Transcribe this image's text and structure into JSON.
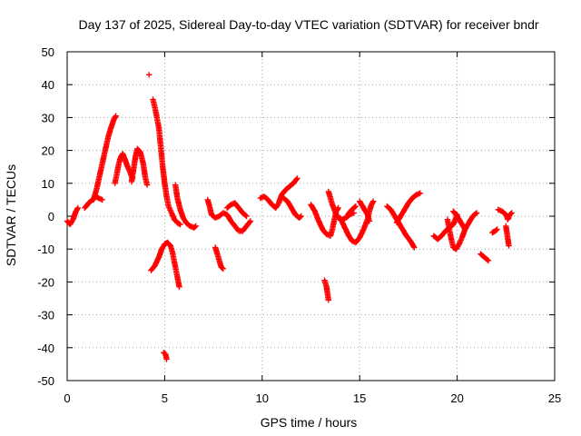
{
  "chart_data": {
    "type": "scatter",
    "title": "Day 137 of 2025, Sidereal Day-to-day VTEC variation (SDTVAR) for receiver bndr",
    "xlabel": "GPS time / hours",
    "ylabel": "SDTVAR / TECUs",
    "xlim": [
      0,
      25
    ],
    "ylim": [
      -50,
      50
    ],
    "xticks": [
      "0",
      "5",
      "10",
      "15",
      "20",
      "25"
    ],
    "yticks": [
      "50",
      "40",
      "30",
      "20",
      "10",
      "0",
      "-10",
      "-20",
      "-30",
      "-40",
      "-50"
    ],
    "grid": true,
    "marker": "+",
    "color": "#ff0000",
    "series": [
      {
        "name": "SDTVAR",
        "segments": [
          [
            [
              0.0,
              -1.5
            ],
            [
              0.15,
              -2.5
            ],
            [
              0.3,
              -1.0
            ],
            [
              0.45,
              1.5
            ],
            [
              0.55,
              2.5
            ]
          ],
          [
            [
              0.9,
              2.5
            ],
            [
              1.1,
              4.0
            ],
            [
              1.3,
              5.0
            ],
            [
              1.5,
              6.0
            ],
            [
              1.6,
              5.5
            ],
            [
              1.8,
              5.0
            ]
          ],
          [
            [
              1.35,
              5.0
            ],
            [
              1.5,
              8.0
            ],
            [
              1.65,
              12.0
            ],
            [
              1.8,
              16.0
            ],
            [
              1.95,
              20.0
            ],
            [
              2.1,
              24.0
            ],
            [
              2.25,
              27.0
            ],
            [
              2.4,
              29.5
            ],
            [
              2.5,
              30.5
            ]
          ],
          [
            [
              2.45,
              10.0
            ],
            [
              2.55,
              13.0
            ],
            [
              2.65,
              16.0
            ],
            [
              2.75,
              18.0
            ],
            [
              2.85,
              19.0
            ],
            [
              2.95,
              17.5
            ],
            [
              3.1,
              15.0
            ],
            [
              3.25,
              13.0
            ],
            [
              3.35,
              11.5
            ]
          ],
          [
            [
              3.3,
              10.5
            ],
            [
              3.4,
              14.0
            ],
            [
              3.5,
              18.0
            ],
            [
              3.6,
              20.5
            ],
            [
              3.75,
              19.5
            ],
            [
              3.9,
              16.0
            ],
            [
              4.0,
              12.0
            ],
            [
              4.1,
              9.5
            ]
          ],
          [
            [
              4.2,
              43.0
            ]
          ],
          [
            [
              4.4,
              35.5
            ],
            [
              4.5,
              33.0
            ],
            [
              4.6,
              30.0
            ],
            [
              4.7,
              27.0
            ],
            [
              4.8,
              21.0
            ],
            [
              4.9,
              15.0
            ],
            [
              5.0,
              10.0
            ],
            [
              5.1,
              6.0
            ],
            [
              5.2,
              3.0
            ],
            [
              5.35,
              1.0
            ],
            [
              5.5,
              -1.0
            ],
            [
              5.65,
              -2.0
            ],
            [
              5.8,
              -2.5
            ]
          ],
          [
            [
              5.55,
              9.5
            ],
            [
              5.65,
              5.5
            ],
            [
              5.8,
              2.0
            ],
            [
              5.95,
              -0.5
            ],
            [
              6.1,
              -2.0
            ],
            [
              6.3,
              -3.0
            ],
            [
              6.5,
              -3.5
            ],
            [
              6.6,
              -3.0
            ]
          ],
          [
            [
              4.3,
              -16.5
            ],
            [
              4.5,
              -15.0
            ],
            [
              4.7,
              -12.5
            ],
            [
              4.85,
              -10.0
            ],
            [
              5.0,
              -8.5
            ],
            [
              5.15,
              -8.0
            ],
            [
              5.3,
              -9.0
            ],
            [
              5.4,
              -11.0
            ],
            [
              5.5,
              -14.0
            ],
            [
              5.6,
              -17.0
            ],
            [
              5.7,
              -20.0
            ],
            [
              5.75,
              -21.5
            ]
          ],
          [
            [
              4.95,
              -41.5
            ],
            [
              5.05,
              -42.0
            ],
            [
              5.1,
              -43.5
            ]
          ],
          [
            [
              7.2,
              5.0
            ],
            [
              7.3,
              3.0
            ],
            [
              7.4,
              0.5
            ],
            [
              7.6,
              -0.5
            ],
            [
              7.8,
              0.0
            ],
            [
              8.0,
              1.0
            ],
            [
              8.2,
              0.5
            ],
            [
              8.4,
              -1.5
            ],
            [
              8.6,
              -3.0
            ],
            [
              8.8,
              -4.5
            ],
            [
              9.0,
              -4.5
            ],
            [
              9.2,
              -3.0
            ],
            [
              9.4,
              -1.5
            ]
          ],
          [
            [
              8.2,
              2.5
            ],
            [
              8.4,
              3.5
            ],
            [
              8.6,
              4.0
            ],
            [
              8.8,
              2.5
            ],
            [
              9.0,
              1.0
            ],
            [
              9.2,
              0.0
            ]
          ],
          [
            [
              7.6,
              -9.5
            ],
            [
              7.7,
              -11.5
            ],
            [
              7.8,
              -13.5
            ],
            [
              7.9,
              -15.5
            ],
            [
              8.0,
              -16.0
            ]
          ],
          [
            [
              9.9,
              5.5
            ],
            [
              10.1,
              6.0
            ],
            [
              10.3,
              5.0
            ],
            [
              10.5,
              3.5
            ],
            [
              10.7,
              2.5
            ],
            [
              10.85,
              4.0
            ],
            [
              11.0,
              6.5
            ],
            [
              11.2,
              8.0
            ],
            [
              11.4,
              9.0
            ],
            [
              11.6,
              10.0
            ],
            [
              11.8,
              11.5
            ]
          ],
          [
            [
              11.1,
              5.5
            ],
            [
              11.3,
              4.5
            ],
            [
              11.5,
              2.5
            ],
            [
              11.7,
              0.5
            ],
            [
              11.9,
              -0.5
            ],
            [
              12.0,
              0.0
            ]
          ],
          [
            [
              12.5,
              3.5
            ],
            [
              12.7,
              1.5
            ],
            [
              12.9,
              -1.5
            ],
            [
              13.1,
              -4.0
            ],
            [
              13.3,
              -5.5
            ],
            [
              13.5,
              -6.0
            ],
            [
              13.6,
              -4.0
            ],
            [
              13.7,
              -1.0
            ],
            [
              13.8,
              1.5
            ],
            [
              13.9,
              2.5
            ]
          ],
          [
            [
              13.4,
              7.5
            ],
            [
              13.5,
              5.5
            ],
            [
              13.6,
              3.5
            ],
            [
              13.7,
              2.0
            ],
            [
              13.8,
              0.5
            ],
            [
              13.9,
              -0.5
            ],
            [
              14.1,
              -1.0
            ],
            [
              14.3,
              -0.5
            ],
            [
              14.5,
              0.5
            ],
            [
              14.7,
              1.0
            ]
          ],
          [
            [
              14.0,
              -0.5
            ],
            [
              14.2,
              -3.0
            ],
            [
              14.4,
              -5.5
            ],
            [
              14.6,
              -7.5
            ],
            [
              14.8,
              -8.0
            ],
            [
              15.0,
              -6.5
            ],
            [
              15.2,
              -4.0
            ],
            [
              15.4,
              -1.0
            ],
            [
              15.5,
              1.5
            ],
            [
              15.6,
              3.5
            ],
            [
              15.7,
              4.5
            ]
          ],
          [
            [
              14.4,
              0.5
            ],
            [
              14.6,
              2.0
            ],
            [
              14.8,
              3.0
            ]
          ],
          [
            [
              15.0,
              4.5
            ],
            [
              15.2,
              2.5
            ],
            [
              15.4,
              0.5
            ],
            [
              15.5,
              -1.5
            ]
          ],
          [
            [
              13.2,
              -19.5
            ],
            [
              13.3,
              -21.5
            ],
            [
              13.35,
              -23.5
            ],
            [
              13.4,
              -25.5
            ]
          ],
          [
            [
              16.4,
              3.0
            ],
            [
              16.6,
              2.0
            ],
            [
              16.8,
              0.0
            ],
            [
              17.0,
              -2.0
            ],
            [
              17.2,
              -4.0
            ],
            [
              17.4,
              -6.0
            ],
            [
              17.6,
              -7.5
            ],
            [
              17.8,
              -9.5
            ]
          ],
          [
            [
              16.9,
              -2.0
            ],
            [
              17.1,
              0.0
            ],
            [
              17.3,
              2.0
            ],
            [
              17.5,
              4.0
            ],
            [
              17.7,
              5.5
            ],
            [
              17.9,
              6.5
            ],
            [
              18.1,
              7.0
            ]
          ],
          [
            [
              18.8,
              -6.0
            ],
            [
              19.0,
              -7.0
            ],
            [
              19.2,
              -6.0
            ],
            [
              19.4,
              -4.5
            ],
            [
              19.6,
              -3.5
            ],
            [
              19.8,
              -2.5
            ],
            [
              19.9,
              -1.0
            ],
            [
              20.0,
              0.5
            ]
          ],
          [
            [
              19.5,
              -1.0
            ],
            [
              19.6,
              -4.0
            ],
            [
              19.7,
              -7.0
            ],
            [
              19.8,
              -9.5
            ],
            [
              19.95,
              -10.0
            ],
            [
              20.1,
              -8.5
            ],
            [
              20.25,
              -6.5
            ],
            [
              20.4,
              -4.0
            ],
            [
              20.6,
              -2.0
            ],
            [
              20.8,
              0.0
            ],
            [
              21.0,
              1.0
            ]
          ],
          [
            [
              19.8,
              1.5
            ],
            [
              20.0,
              0.0
            ],
            [
              20.2,
              -2.0
            ],
            [
              20.4,
              -4.0
            ]
          ],
          [
            [
              21.2,
              -11.5
            ],
            [
              21.4,
              -12.5
            ],
            [
              21.6,
              -13.5
            ]
          ],
          [
            [
              21.8,
              -5.0
            ],
            [
              21.95,
              -4.5
            ],
            [
              22.05,
              -4.0
            ]
          ],
          [
            [
              22.1,
              2.0
            ],
            [
              22.3,
              1.5
            ],
            [
              22.5,
              0.5
            ],
            [
              22.6,
              -1.0
            ],
            [
              22.7,
              0.5
            ],
            [
              22.8,
              1.0
            ]
          ],
          [
            [
              22.5,
              -3.0
            ],
            [
              22.55,
              -5.0
            ],
            [
              22.6,
              -7.0
            ],
            [
              22.65,
              -9.0
            ]
          ]
        ]
      }
    ]
  }
}
